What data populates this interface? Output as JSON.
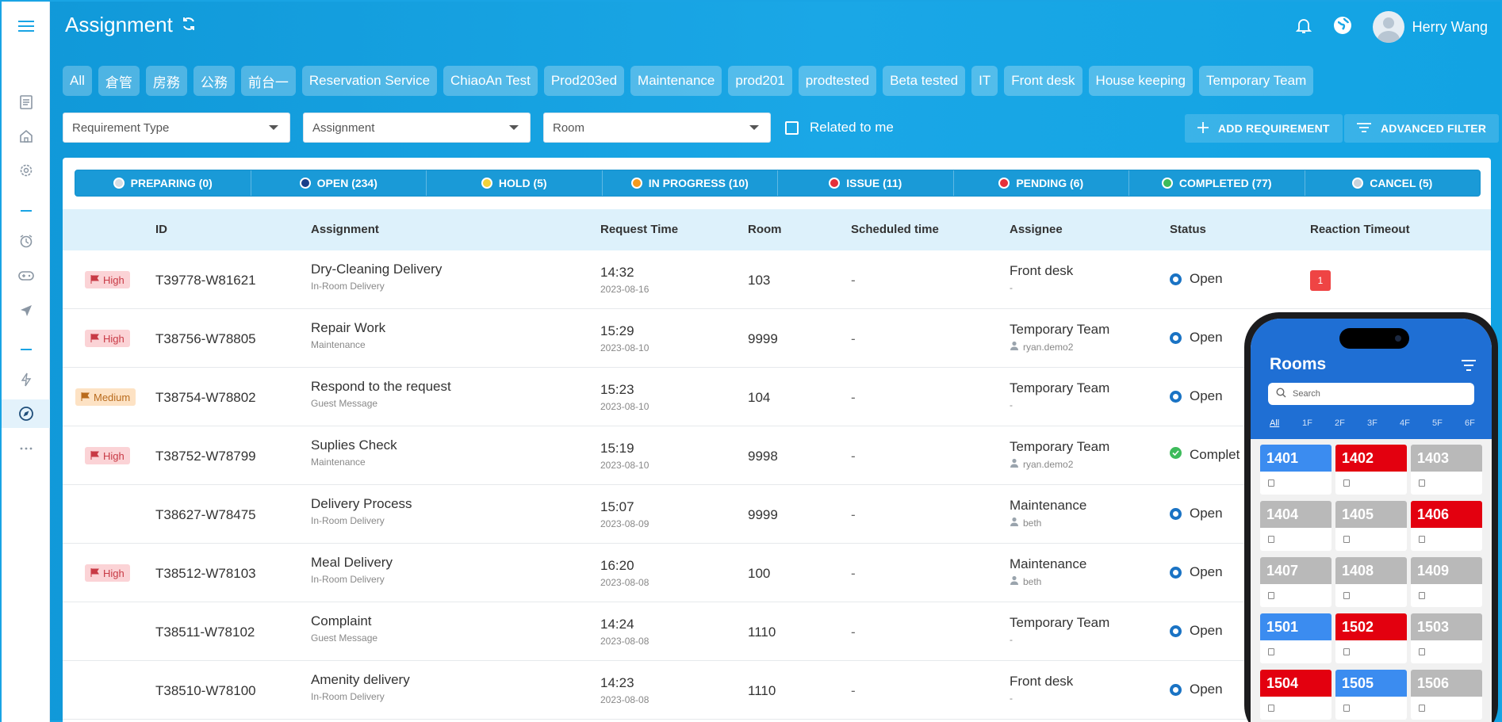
{
  "header": {
    "title": "Assignment",
    "user_name": "Herry Wang"
  },
  "chips": [
    "All",
    "倉管",
    "房務",
    "公務",
    "前台一",
    "Reservation Service",
    "ChiaoAn Test",
    "Prod203ed",
    "Maintenance",
    "prod201",
    "prodtested",
    "Beta tested",
    "IT",
    "Front desk",
    "House keeping",
    "Temporary Team"
  ],
  "filters": {
    "requirement_type": "Requirement Type",
    "assignment": "Assignment",
    "room": "Room",
    "related_to_me": "Related to me",
    "add_requirement": "ADD REQUIREMENT",
    "advanced_filter": "ADVANCED FILTER"
  },
  "status_tabs": [
    {
      "label": "PREPARING (0)",
      "color": "#d6dde3"
    },
    {
      "label": "OPEN (234)",
      "color": "#1a3f8a"
    },
    {
      "label": "HOLD (5)",
      "color": "#f2d23a"
    },
    {
      "label": "IN PROGRESS (10)",
      "color": "#f39a1e"
    },
    {
      "label": "ISSUE (11)",
      "color": "#e5303a"
    },
    {
      "label": "PENDING (6)",
      "color": "#e5303a"
    },
    {
      "label": "COMPLETED (77)",
      "color": "#3dbb5b"
    },
    {
      "label": "CANCEL (5)",
      "color": "#c9d2da"
    }
  ],
  "table": {
    "columns": [
      "ID",
      "Assignment",
      "Request Time",
      "Room",
      "Scheduled time",
      "Assignee",
      "Status",
      "Reaction Timeout"
    ],
    "rows": [
      {
        "priority": "High",
        "id": "T39778-W81621",
        "title": "Dry-Cleaning Delivery",
        "category": "In-Room Delivery",
        "time": "14:32",
        "date": "2023-08-16",
        "room": "103",
        "scheduled": "-",
        "assignee": "Front desk",
        "assignee_sub": "-",
        "status": "Open",
        "timeout": "1"
      },
      {
        "priority": "High",
        "id": "T38756-W78805",
        "title": "Repair Work",
        "category": "Maintenance",
        "time": "15:29",
        "date": "2023-08-10",
        "room": "9999",
        "scheduled": "-",
        "assignee": "Temporary Team",
        "assignee_sub": "ryan.demo2",
        "status": "Open",
        "timeout": ""
      },
      {
        "priority": "Medium",
        "id": "T38754-W78802",
        "title": "Respond to the request",
        "category": "Guest Message",
        "time": "15:23",
        "date": "2023-08-10",
        "room": "104",
        "scheduled": "-",
        "assignee": "Temporary Team",
        "assignee_sub": "-",
        "status": "Open",
        "timeout": ""
      },
      {
        "priority": "High",
        "id": "T38752-W78799",
        "title": "Suplies Check",
        "category": "Maintenance",
        "time": "15:19",
        "date": "2023-08-10",
        "room": "9998",
        "scheduled": "-",
        "assignee": "Temporary Team",
        "assignee_sub": "ryan.demo2",
        "status": "Complet",
        "timeout": ""
      },
      {
        "priority": "",
        "id": "T38627-W78475",
        "title": "Delivery Process",
        "category": "In-Room Delivery",
        "time": "15:07",
        "date": "2023-08-09",
        "room": "9999",
        "scheduled": "-",
        "assignee": "Maintenance",
        "assignee_sub": "beth",
        "status": "Open",
        "timeout": ""
      },
      {
        "priority": "High",
        "id": "T38512-W78103",
        "title": "Meal Delivery",
        "category": "In-Room Delivery",
        "time": "16:20",
        "date": "2023-08-08",
        "room": "100",
        "scheduled": "-",
        "assignee": "Maintenance",
        "assignee_sub": "beth",
        "status": "Open",
        "timeout": ""
      },
      {
        "priority": "",
        "id": "T38511-W78102",
        "title": "Complaint",
        "category": "Guest Message",
        "time": "14:24",
        "date": "2023-08-08",
        "room": "1110",
        "scheduled": "-",
        "assignee": "Temporary Team",
        "assignee_sub": "-",
        "status": "Open",
        "timeout": ""
      },
      {
        "priority": "",
        "id": "T38510-W78100",
        "title": "Amenity delivery",
        "category": "In-Room Delivery",
        "time": "14:23",
        "date": "2023-08-08",
        "room": "1110",
        "scheduled": "-",
        "assignee": "Front desk",
        "assignee_sub": "-",
        "status": "Open",
        "timeout": ""
      }
    ]
  },
  "phone": {
    "title": "Rooms",
    "search_placeholder": "Search",
    "floors": [
      "All",
      "1F",
      "2F",
      "3F",
      "4F",
      "5F",
      "6F"
    ],
    "rooms": [
      {
        "number": "1401",
        "state": "blue"
      },
      {
        "number": "1402",
        "state": "red"
      },
      {
        "number": "1403",
        "state": "gray"
      },
      {
        "number": "1404",
        "state": "gray"
      },
      {
        "number": "1405",
        "state": "gray"
      },
      {
        "number": "1406",
        "state": "red"
      },
      {
        "number": "1407",
        "state": "gray"
      },
      {
        "number": "1408",
        "state": "gray"
      },
      {
        "number": "1409",
        "state": "gray"
      },
      {
        "number": "1501",
        "state": "blue"
      },
      {
        "number": "1502",
        "state": "red"
      },
      {
        "number": "1503",
        "state": "gray"
      },
      {
        "number": "1504",
        "state": "red"
      },
      {
        "number": "1505",
        "state": "blue"
      },
      {
        "number": "1506",
        "state": "gray"
      }
    ],
    "state_colors": {
      "blue": "#3b8cf0",
      "red": "#e3000f",
      "gray": "#b9b9b9"
    }
  },
  "icons": {
    "sidebar": [
      "menu-icon",
      "document-icon",
      "home-icon",
      "settings-icon",
      "alarm-icon",
      "gamepad-icon",
      "send-icon",
      "flash-icon",
      "compass-icon",
      "more-icon"
    ],
    "header": [
      "refresh-icon",
      "bell-icon",
      "globe-icon"
    ]
  }
}
